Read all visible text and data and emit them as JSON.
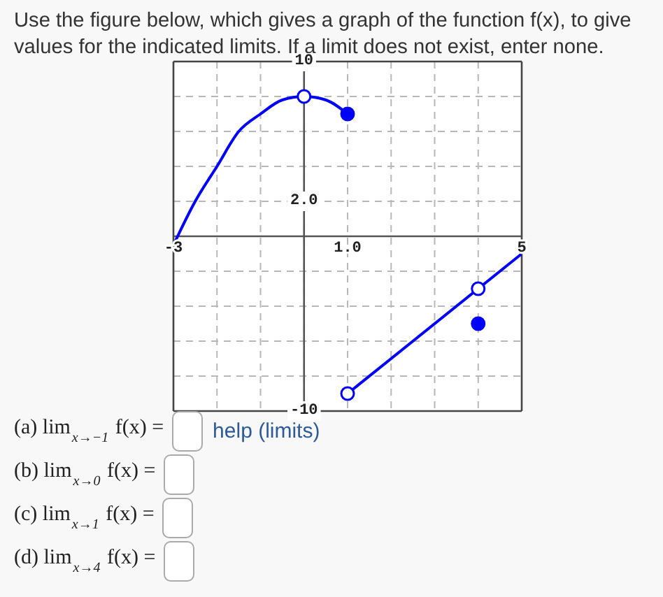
{
  "chart_data": {
    "type": "line",
    "title": "Use the figure below, which gives a graph of the function f(x), to give values for the indicated limits. If a limit does not exist, enter none.",
    "xlim": [
      -3,
      5
    ],
    "xticks": [
      -3,
      {
        "value": -2,
        "label": null
      },
      {
        "value": -1,
        "label": null
      },
      {
        "value": 0,
        "label": null
      },
      {
        "value": 1,
        "label": "1.0"
      },
      {
        "value": 2,
        "label": null
      },
      {
        "value": 3,
        "label": null
      },
      {
        "value": 4,
        "label": null
      },
      5
    ],
    "ylim": [
      -10,
      10
    ],
    "yticks": [
      10,
      {
        "value": 8,
        "label": null
      },
      {
        "value": 6,
        "label": null
      },
      {
        "value": 4,
        "label": null
      },
      {
        "value": 2,
        "label": "2.0"
      },
      {
        "value": 0,
        "label": null
      },
      {
        "value": -2,
        "label": null
      },
      {
        "value": -4,
        "label": null
      },
      {
        "value": -6,
        "label": null
      },
      {
        "value": -8,
        "label": null
      },
      -10
    ],
    "grid": true,
    "series": [
      {
        "color": "#0000ff",
        "x": [
          -3,
          -2.5,
          -2,
          -1.5,
          -1,
          -0.5,
          0,
          0.5,
          1
        ],
        "values": [
          -0.5,
          2,
          4,
          6,
          7,
          7.8,
          8,
          7.8,
          7
        ]
      },
      {
        "color": "#0000ff",
        "x": [
          1,
          5
        ],
        "values": [
          -9,
          -1
        ]
      },
      {
        "type": "scatter",
        "marker": "circle",
        "color": "#0000ff",
        "x": [
          1,
          4
        ],
        "values": [
          7,
          -5
        ]
      },
      {
        "type": "scatter",
        "marker": "circle",
        "color": "#ffffff",
        "x": [
          0,
          1,
          4
        ],
        "values": [
          8,
          -9,
          -3
        ]
      }
    ],
    "annotations": [
      "(a) lim$_{x→−1}$ f(x) =",
      "help (limits)",
      "(b) lim$_{x→0}$ f(x) =",
      "(c) lim$_{x→1}$ f(x) =",
      "(d) lim$_{x→4}$ f(x) ="
    ]
  }
}
